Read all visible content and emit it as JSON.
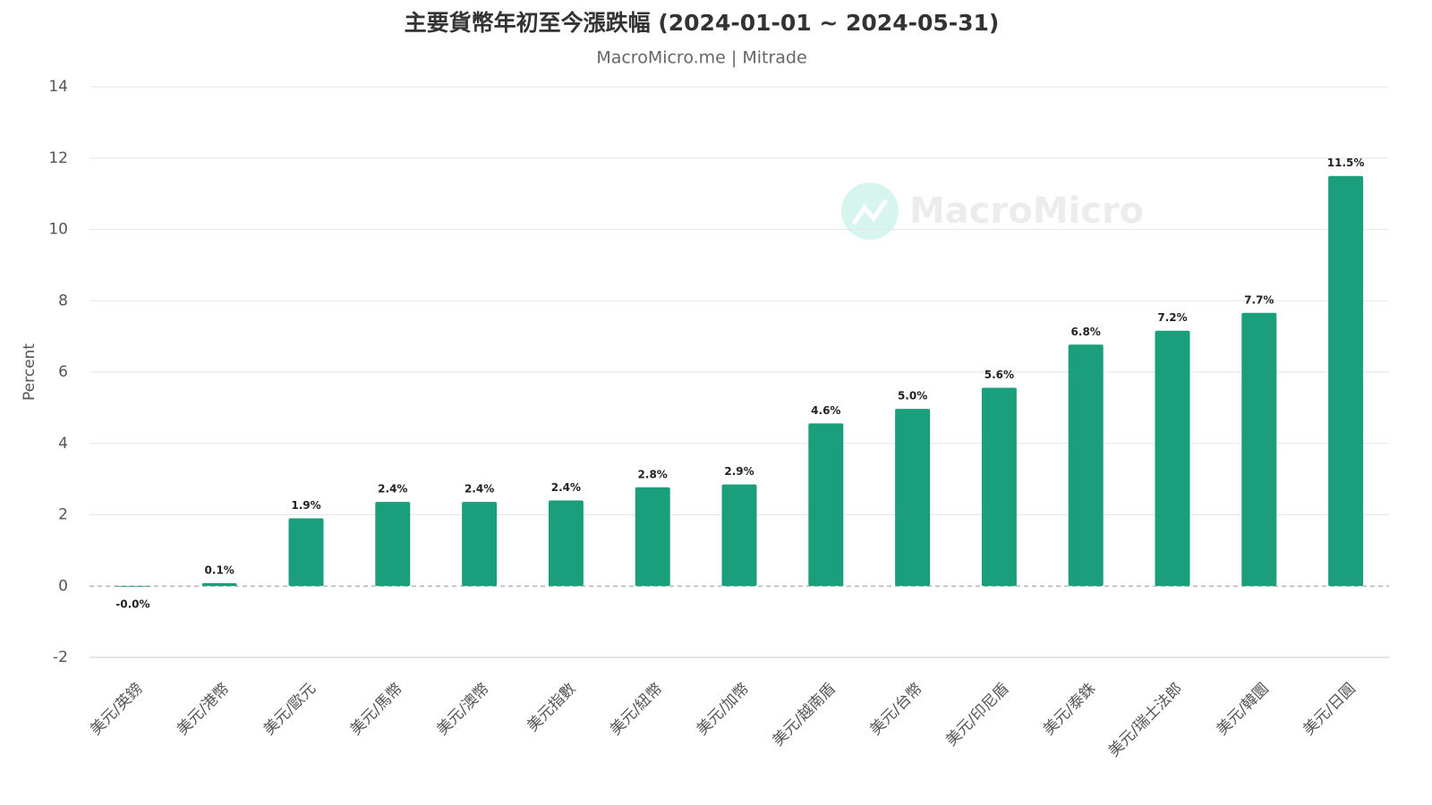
{
  "chart_data": {
    "type": "bar",
    "title": "主要貨幣年初至今漲跌幅 (2024-01-01 ~ 2024-05-31)",
    "subtitle": "MacroMicro.me | Mitrade",
    "watermark": "MacroMicro",
    "y_label": "Percent",
    "categories": [
      "美元/英鎊",
      "美元/港幣",
      "美元/歐元",
      "美元/馬幣",
      "美元/澳幣",
      "美元指數",
      "美元/紐幣",
      "美元/加幣",
      "美元/越南盾",
      "美元/台幣",
      "美元/印尼盾",
      "美元/泰銖",
      "美元/瑞士法郎",
      "美元/韓圜",
      "美元/日圓"
    ],
    "values": [
      -0.02,
      0.08,
      1.9,
      2.36,
      2.36,
      2.4,
      2.77,
      2.85,
      4.56,
      4.97,
      5.56,
      6.77,
      7.16,
      7.66,
      11.5
    ],
    "value_labels": [
      "-0.0%",
      "0.1%",
      "1.9%",
      "2.4%",
      "2.4%",
      "2.4%",
      "2.8%",
      "2.9%",
      "4.6%",
      "5.0%",
      "5.6%",
      "6.8%",
      "7.2%",
      "7.7%",
      "11.5%"
    ],
    "color": "#1a9e7c",
    "ylim": [
      -2,
      14
    ],
    "yticks": [
      -2,
      0,
      2,
      4,
      6,
      8,
      10,
      12,
      14
    ],
    "grid": true
  }
}
